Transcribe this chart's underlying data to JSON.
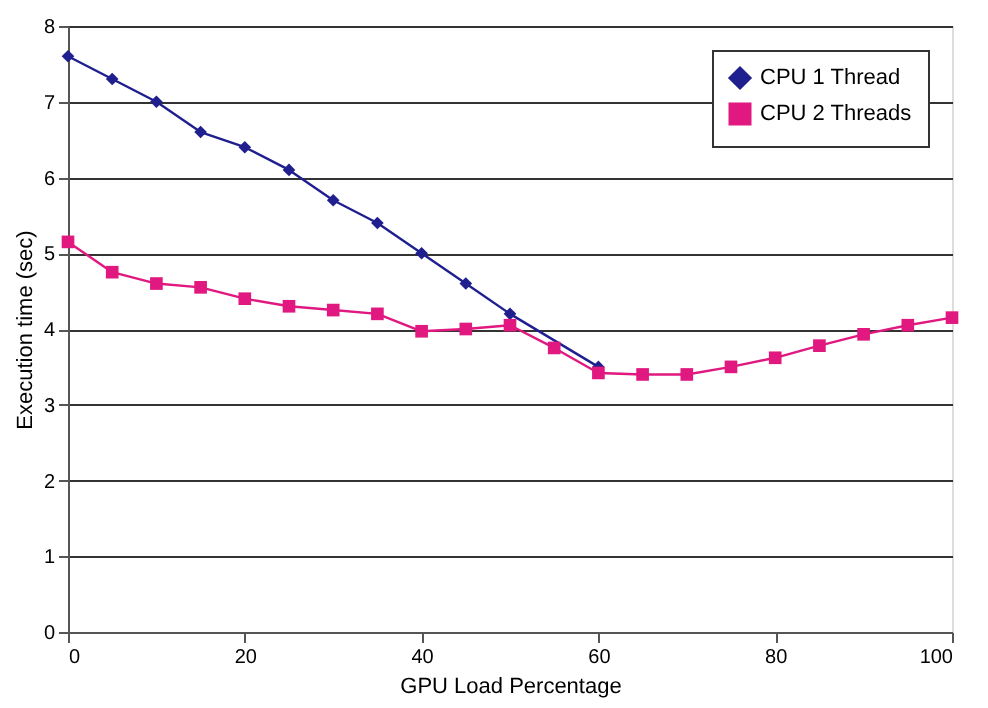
{
  "chart_data": {
    "type": "line",
    "xlabel": "GPU Load Percentage",
    "ylabel": "Execution time (sec)",
    "x": [
      0,
      5,
      10,
      15,
      20,
      25,
      30,
      35,
      40,
      45,
      50,
      55,
      60,
      65,
      70,
      75,
      80,
      85,
      90,
      95,
      100
    ],
    "series": [
      {
        "name": "CPU 1 Thread",
        "color": "#1f1f8f",
        "marker": "diamond",
        "values": [
          7.6,
          7.3,
          7.0,
          6.6,
          6.4,
          6.1,
          5.7,
          5.4,
          5.0,
          4.6,
          4.2,
          null,
          3.5,
          null,
          null,
          null,
          null,
          null,
          null,
          null,
          null
        ]
      },
      {
        "name": "CPU 2 Threads",
        "color": "#e0187f",
        "marker": "square",
        "values": [
          5.15,
          4.75,
          4.6,
          4.55,
          4.4,
          4.3,
          4.25,
          4.2,
          3.97,
          4.0,
          4.05,
          3.75,
          3.42,
          3.4,
          3.4,
          3.5,
          3.62,
          3.78,
          3.93,
          4.05,
          4.15
        ]
      }
    ],
    "xlim": [
      0,
      100
    ],
    "xticks": [
      0,
      20,
      40,
      60,
      80,
      100
    ],
    "ylim": [
      0,
      8
    ],
    "yticks": [
      0,
      1,
      2,
      3,
      4,
      5,
      6,
      7,
      8
    ],
    "grid": "y",
    "legend": "top right",
    "line_style": "solid"
  }
}
